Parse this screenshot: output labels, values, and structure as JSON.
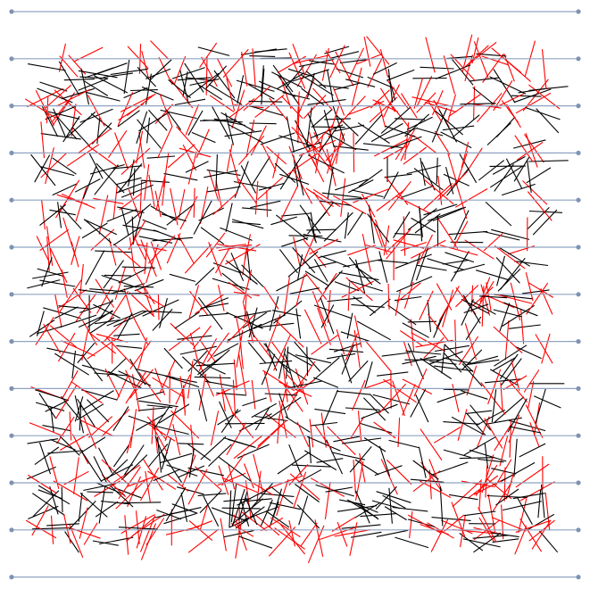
{
  "diagram": {
    "kind": "buffon-needle-simulation",
    "colors": {
      "background": "#ffffff",
      "grid_line": "#8fa3c0",
      "grid_dot": "#7e93b3",
      "needle_miss": "#000000",
      "needle_cross": "#ff0000"
    },
    "line_count": 13,
    "needle_count": 1400,
    "random_seed": 20240611
  }
}
